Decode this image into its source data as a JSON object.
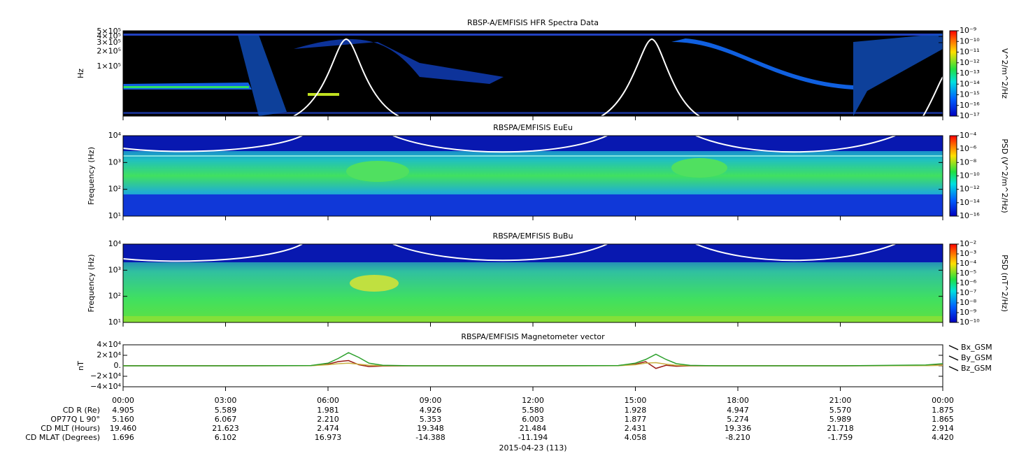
{
  "chart_data": [
    {
      "type": "spectrogram",
      "title": "RBSP-A/EMFISIS  HFR Spectra Data",
      "ylabel": "Hz",
      "log_y": true,
      "ylim": [
        10000,
        520000
      ],
      "yticks": [
        {
          "value": 500000,
          "label": "5×10⁵"
        },
        {
          "value": 400000,
          "label": "4×10⁵"
        },
        {
          "value": 300000,
          "label": "3×10⁵"
        },
        {
          "value": 200000,
          "label": "2×10⁵"
        },
        {
          "value": 100000,
          "label": "1×10⁵"
        }
      ],
      "colorbar_label": "V^2/m^2/Hz",
      "clim": [
        1e-17,
        1e-09
      ],
      "cticks": [
        {
          "value": 1e-09,
          "label": "10⁻⁹"
        },
        {
          "value": 1e-10,
          "label": "10⁻¹⁰"
        },
        {
          "value": 1e-11,
          "label": "10⁻¹¹"
        },
        {
          "value": 1e-12,
          "label": "10⁻¹²"
        },
        {
          "value": 1e-13,
          "label": "10⁻¹³"
        },
        {
          "value": 1e-14,
          "label": "10⁻¹⁴"
        },
        {
          "value": 1e-15,
          "label": "10⁻¹⁵"
        },
        {
          "value": 1e-16,
          "label": "10⁻¹⁶"
        },
        {
          "value": 1e-17,
          "label": "10⁻¹⁷"
        }
      ]
    },
    {
      "type": "spectrogram",
      "title": "RBSPA/EMFISIS  EuEu",
      "ylabel": "Frequency (Hz)",
      "log_y": true,
      "ylim": [
        10,
        10000
      ],
      "yticks": [
        {
          "value": 10,
          "label": "10¹"
        },
        {
          "value": 100,
          "label": "10²"
        },
        {
          "value": 1000,
          "label": "10³"
        },
        {
          "value": 10000,
          "label": "10⁴"
        }
      ],
      "colorbar_label": "PSD (V^2/m^2/Hz)",
      "clim": [
        1e-16,
        0.0001
      ],
      "cticks": [
        {
          "value": 0.0001,
          "label": "10⁻⁴"
        },
        {
          "value": 1e-06,
          "label": "10⁻⁶"
        },
        {
          "value": 1e-08,
          "label": "10⁻⁸"
        },
        {
          "value": 1e-10,
          "label": "10⁻¹⁰"
        },
        {
          "value": 1e-12,
          "label": "10⁻¹²"
        },
        {
          "value": 1e-14,
          "label": "10⁻¹⁴"
        },
        {
          "value": 1e-16,
          "label": "10⁻¹⁶"
        }
      ]
    },
    {
      "type": "spectrogram",
      "title": "RBSPA/EMFISIS  BuBu",
      "ylabel": "Frequency (Hz)",
      "log_y": true,
      "ylim": [
        10,
        10000
      ],
      "yticks": [
        {
          "value": 10,
          "label": "10¹"
        },
        {
          "value": 100,
          "label": "10²"
        },
        {
          "value": 1000,
          "label": "10³"
        },
        {
          "value": 10000,
          "label": "10⁴"
        }
      ],
      "colorbar_label": "PSD (nT^2/Hz)",
      "clim": [
        1e-10,
        0.01
      ],
      "cticks": [
        {
          "value": 0.01,
          "label": "10⁻²"
        },
        {
          "value": 0.001,
          "label": "10⁻³"
        },
        {
          "value": 0.0001,
          "label": "10⁻⁴"
        },
        {
          "value": 1e-05,
          "label": "10⁻⁵"
        },
        {
          "value": 1e-06,
          "label": "10⁻⁶"
        },
        {
          "value": 1e-07,
          "label": "10⁻⁷"
        },
        {
          "value": 1e-08,
          "label": "10⁻⁸"
        },
        {
          "value": 1e-09,
          "label": "10⁻⁹"
        },
        {
          "value": 1e-10,
          "label": "10⁻¹⁰"
        }
      ]
    },
    {
      "type": "line",
      "title": "RBSPA/EMFISIS  Magnetometer vector",
      "ylabel": "nT",
      "ylim": [
        -40000,
        40000
      ],
      "yticks": [
        {
          "value": 40000,
          "label": "4×10⁴"
        },
        {
          "value": 20000,
          "label": "2×10⁴"
        },
        {
          "value": 0,
          "label": "0."
        },
        {
          "value": -20000,
          "label": "−2×10⁴"
        },
        {
          "value": -40000,
          "label": "−4×10⁴"
        }
      ],
      "xlim": [
        0,
        24
      ],
      "xticks": [
        {
          "value": 0,
          "label": "00:00"
        },
        {
          "value": 3,
          "label": "03:00"
        },
        {
          "value": 6,
          "label": "06:00"
        },
        {
          "value": 9,
          "label": "09:00"
        },
        {
          "value": 12,
          "label": "12:00"
        },
        {
          "value": 15,
          "label": "15:00"
        },
        {
          "value": 18,
          "label": "18:00"
        },
        {
          "value": 21,
          "label": "21:00"
        },
        {
          "value": 24,
          "label": "00:00"
        }
      ],
      "x": [
        0,
        3,
        5.5,
        6,
        6.3,
        6.6,
        6.9,
        7.2,
        7.6,
        8.5,
        12,
        14.5,
        15,
        15.3,
        15.6,
        15.9,
        16.2,
        16.6,
        17.5,
        21,
        23.5,
        24
      ],
      "series": [
        {
          "name": "Bx_GSM",
          "color": "#9a1c14",
          "values": [
            0,
            0,
            300,
            3000,
            8000,
            10000,
            2000,
            -1500,
            -500,
            0,
            0,
            300,
            3000,
            8000,
            -5000,
            1000,
            -800,
            -200,
            0,
            0,
            500,
            1500
          ]
        },
        {
          "name": "By_GSM",
          "color": "#c8b040",
          "values": [
            0,
            0,
            200,
            2000,
            4000,
            5000,
            3000,
            1000,
            200,
            0,
            0,
            200,
            2000,
            5000,
            6000,
            3000,
            800,
            200,
            0,
            0,
            300,
            800
          ]
        },
        {
          "name": "Bz_GSM",
          "color": "#2ca02c",
          "values": [
            0,
            0,
            500,
            5000,
            14000,
            25000,
            16000,
            5000,
            1000,
            0,
            0,
            500,
            5000,
            12000,
            22000,
            12000,
            4000,
            800,
            0,
            0,
            1500,
            4000
          ]
        }
      ],
      "ephemeris": [
        {
          "label": "CD R (Re)",
          "values": [
            "4.905",
            "5.589",
            "1.981",
            "4.926",
            "5.580",
            "1.928",
            "4.947",
            "5.570",
            "1.875"
          ]
        },
        {
          "label": "OP77Q L 90°",
          "values": [
            "5.160",
            "6.067",
            "2.210",
            "5.353",
            "6.003",
            "1.877",
            "5.274",
            "5.989",
            "1.865"
          ]
        },
        {
          "label": "CD MLT (Hours)",
          "values": [
            "19.460",
            "21.623",
            "2.474",
            "19.348",
            "21.484",
            "2.431",
            "19.336",
            "21.718",
            "2.914"
          ]
        },
        {
          "label": "CD MLAT (Degrees)",
          "values": [
            "1.696",
            "6.102",
            "16.973",
            "-14.388",
            "-11.194",
            "4.058",
            "-8.210",
            "-1.759",
            "4.420"
          ]
        }
      ],
      "date_label": "2015-04-23 (113)"
    }
  ]
}
